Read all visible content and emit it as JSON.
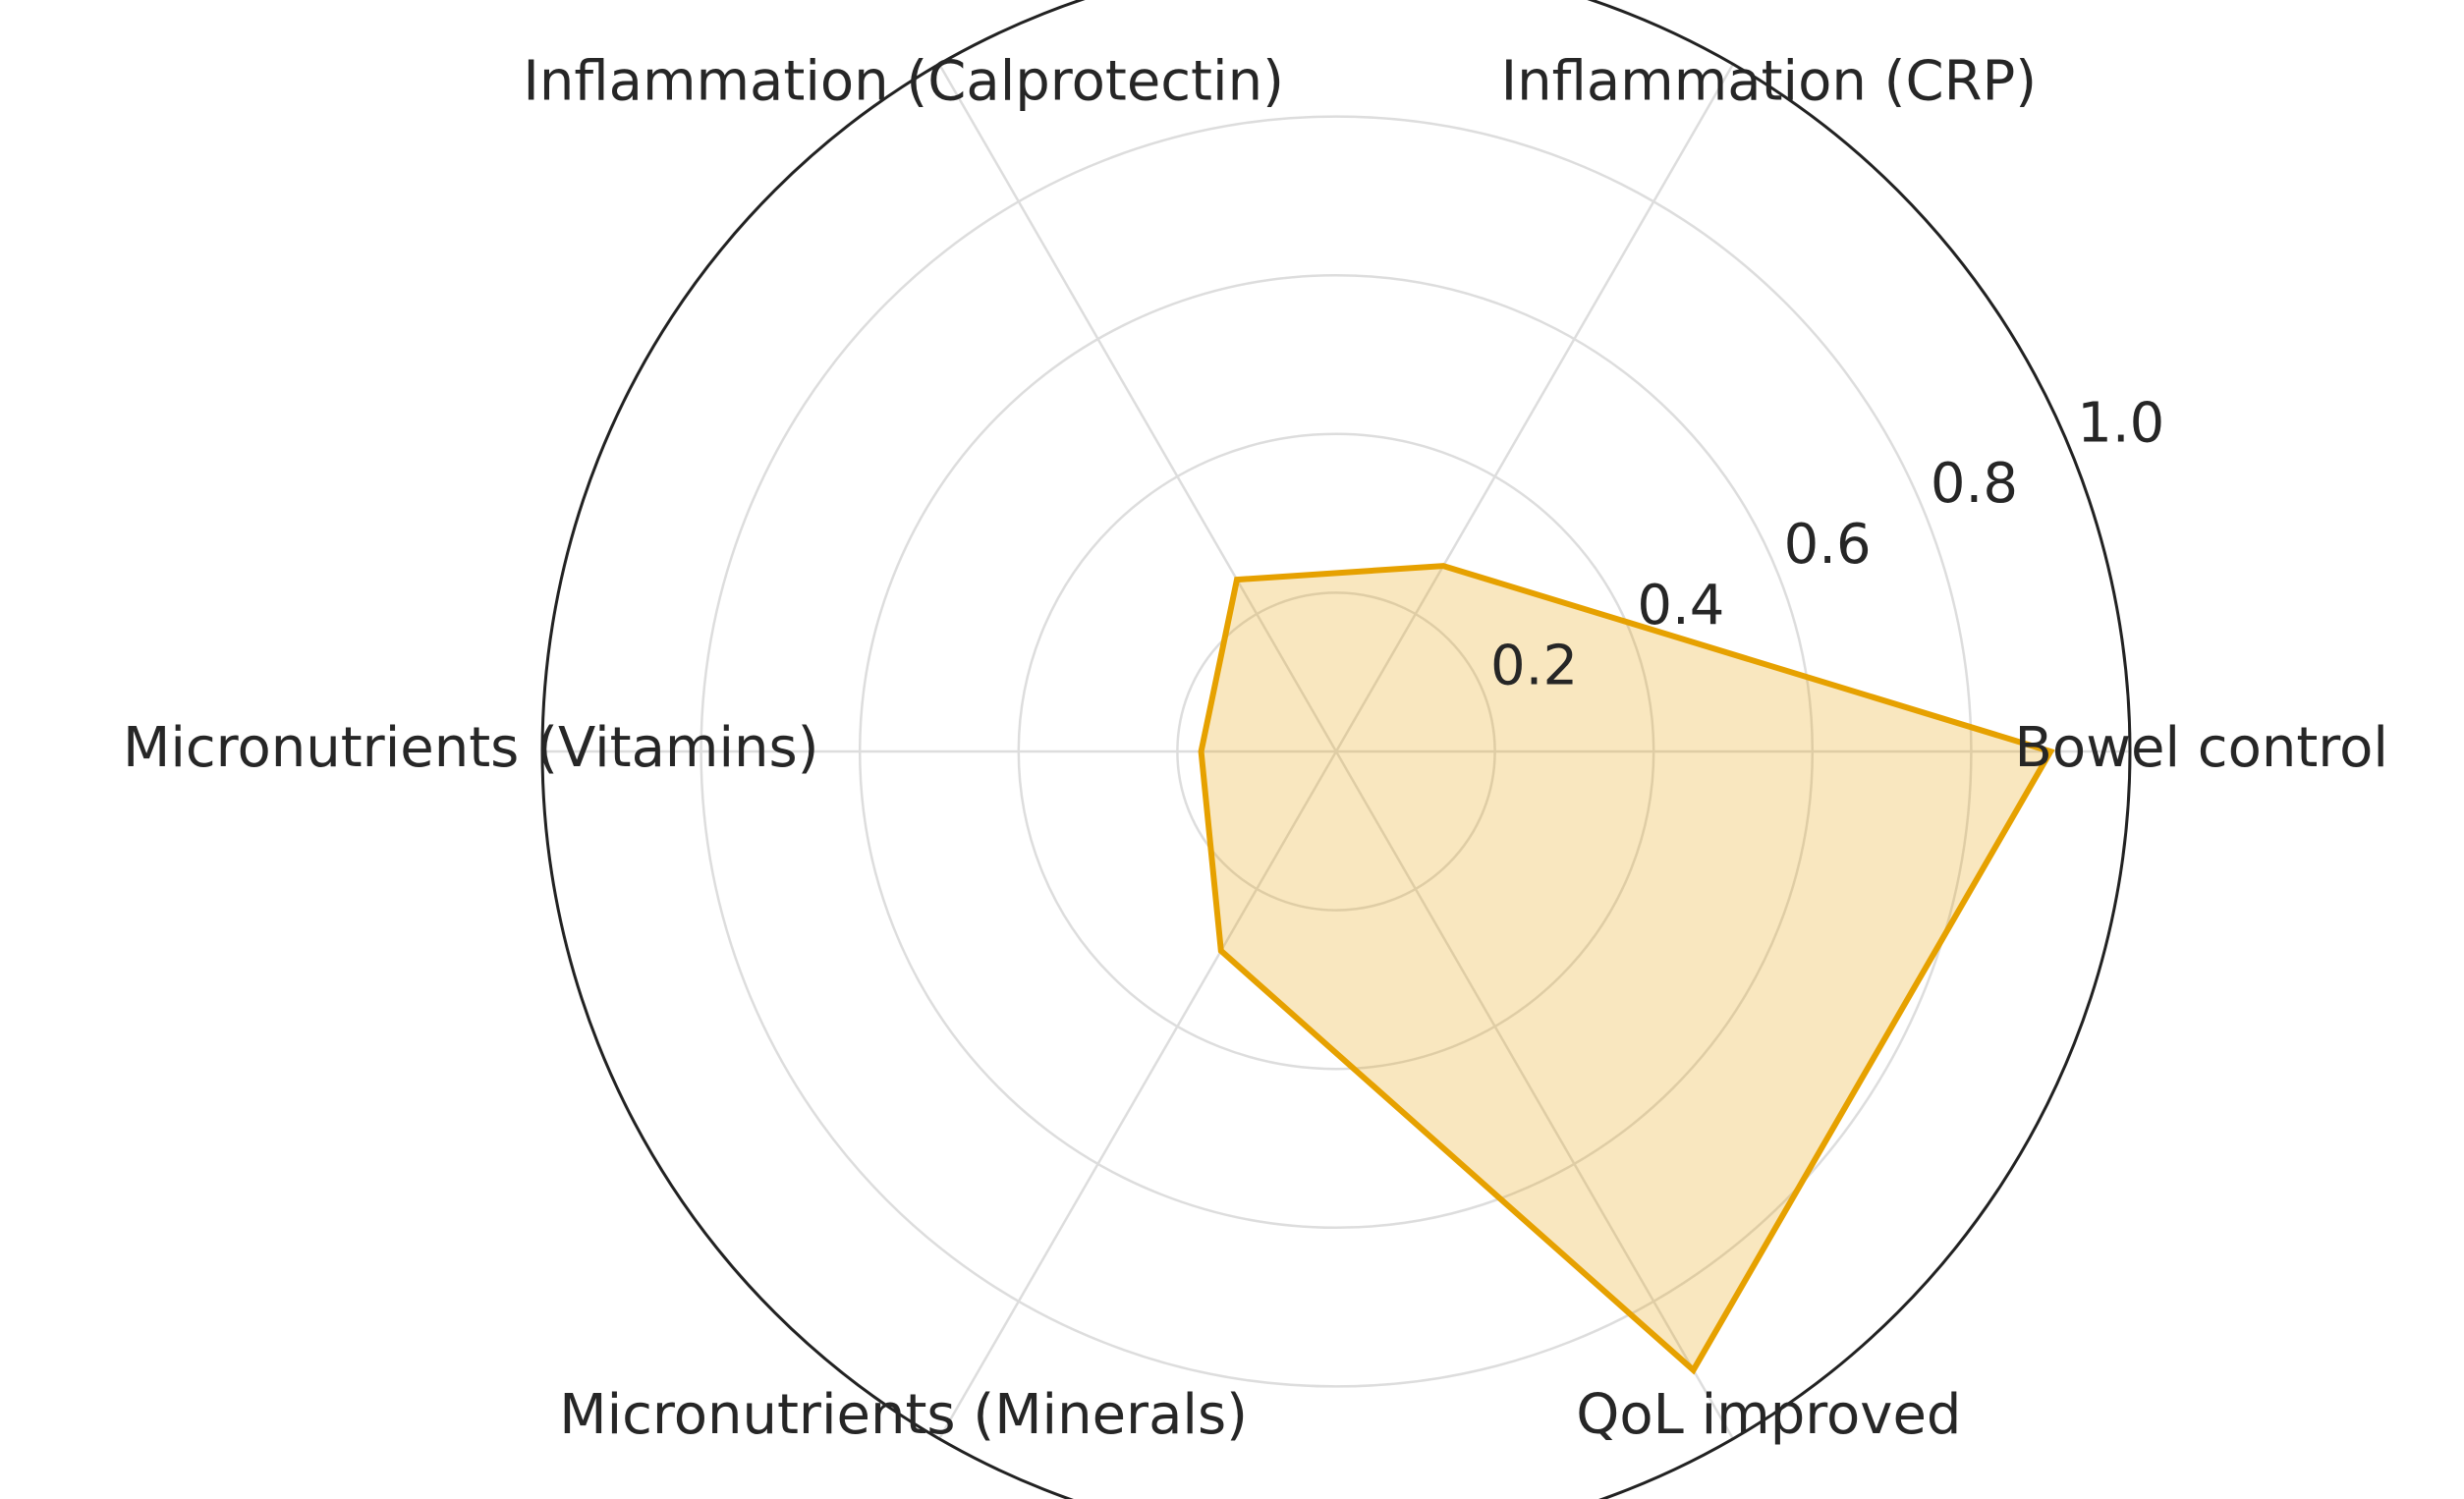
{
  "chart_data": {
    "type": "radar",
    "categories": [
      "Bowel control",
      "Inflammation (CRP)",
      "Inflammation (Calprotectin)",
      "Micronutrients (Vitamins)",
      "Micronutrients (Minerals)",
      "QoL improved"
    ],
    "values": [
      0.9,
      0.27,
      0.25,
      0.17,
      0.29,
      0.9
    ],
    "color": "#e6a100",
    "ylim": [
      0,
      1
    ],
    "yticks": [
      0.2,
      0.4,
      0.6,
      0.8,
      {
        "value": 1,
        "label": "1.0"
      }
    ],
    "grid": true
  }
}
